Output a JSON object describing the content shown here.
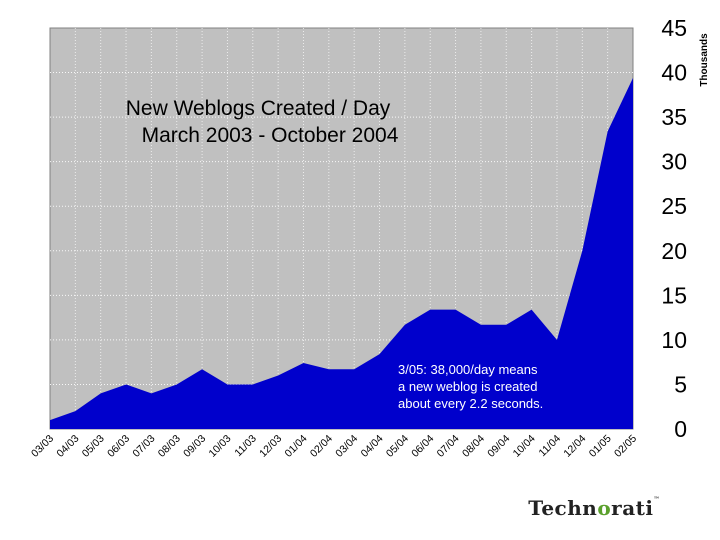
{
  "chart_data": {
    "type": "area",
    "title_lines": [
      "New Weblogs Created / Day",
      "March 2003 - October 2004"
    ],
    "ylabel": "Thousands",
    "ylim": [
      0,
      45
    ],
    "yticks": [
      0,
      5,
      10,
      15,
      20,
      25,
      30,
      35,
      40,
      45
    ],
    "grid": true,
    "categories": [
      "03/03",
      "04/03",
      "05/03",
      "06/03",
      "07/03",
      "08/03",
      "09/03",
      "10/03",
      "11/03",
      "12/03",
      "01/04",
      "02/04",
      "03/04",
      "04/04",
      "05/04",
      "06/04",
      "07/04",
      "08/04",
      "09/04",
      "10/04",
      "11/04",
      "12/04",
      "01/05",
      "02/05"
    ],
    "series": [
      {
        "values": [
          1.0,
          2.0,
          4.0,
          5.0,
          4.0,
          5.0,
          6.7,
          5.0,
          5.0,
          6.0,
          7.4,
          6.7,
          6.7,
          8.4,
          11.7,
          13.4,
          13.4,
          11.7,
          11.7,
          13.4,
          10.0,
          20.0,
          33.4,
          39.4
        ],
        "color": "#0000cc"
      }
    ],
    "annotation_lines": [
      "3/05: 38,000/day means",
      "a new weblog is created",
      "about every 2.2 seconds."
    ]
  },
  "logo": {
    "prefix": "Techn",
    "o": "o",
    "suffix": "rati",
    "tm": "™"
  }
}
